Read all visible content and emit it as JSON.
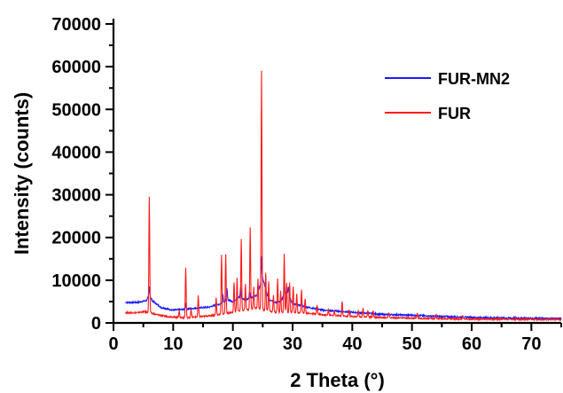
{
  "chart_data": {
    "type": "line",
    "xlabel": "2 Theta (°)",
    "ylabel": "Intensity (counts)",
    "xlim": [
      0,
      75
    ],
    "ylim": [
      0,
      70000
    ],
    "x_ticks": [
      0,
      10,
      20,
      30,
      40,
      50,
      60,
      70
    ],
    "y_ticks": [
      0,
      10000,
      20000,
      30000,
      40000,
      50000,
      60000,
      70000
    ],
    "grid": false,
    "legend_position": "top-right",
    "series": [
      {
        "name": "FUR-MN2",
        "color": "#1a1aff",
        "baseline": [
          [
            2,
            4800
          ],
          [
            4,
            4800
          ],
          [
            5.5,
            5200
          ],
          [
            6,
            6500
          ],
          [
            6.5,
            5200
          ],
          [
            8,
            3600
          ],
          [
            10,
            3000
          ],
          [
            12,
            3200
          ],
          [
            14,
            3500
          ],
          [
            16,
            3700
          ],
          [
            18,
            4500
          ],
          [
            19,
            5500
          ],
          [
            20,
            5000
          ],
          [
            21,
            6000
          ],
          [
            22,
            5500
          ],
          [
            23,
            5800
          ],
          [
            24,
            6500
          ],
          [
            25,
            10500
          ],
          [
            26,
            5500
          ],
          [
            27,
            4800
          ],
          [
            28,
            5000
          ],
          [
            29,
            7500
          ],
          [
            30,
            4500
          ],
          [
            32,
            3800
          ],
          [
            35,
            3000
          ],
          [
            40,
            2500
          ],
          [
            45,
            2000
          ],
          [
            50,
            1800
          ],
          [
            55,
            1500
          ],
          [
            60,
            1300
          ],
          [
            65,
            1200
          ],
          [
            70,
            1100
          ],
          [
            75,
            1000
          ]
        ],
        "peaks": [
          [
            6.0,
            2000
          ],
          [
            12.1,
            1500
          ],
          [
            18.3,
            2000
          ],
          [
            19.0,
            2500
          ],
          [
            21.3,
            2500
          ],
          [
            22.8,
            1500
          ],
          [
            24.8,
            6000
          ],
          [
            28.6,
            3000
          ],
          [
            29.3,
            2000
          ],
          [
            31.5,
            1000
          ]
        ]
      },
      {
        "name": "FUR",
        "color": "#ff1a1a",
        "baseline": [
          [
            2,
            2400
          ],
          [
            4,
            2400
          ],
          [
            5,
            2600
          ],
          [
            6,
            2500
          ],
          [
            7,
            2000
          ],
          [
            9,
            1500
          ],
          [
            12,
            1200
          ],
          [
            15,
            1500
          ],
          [
            18,
            2000
          ],
          [
            20,
            2500
          ],
          [
            22,
            3000
          ],
          [
            24,
            3500
          ],
          [
            25,
            3000
          ],
          [
            27,
            2500
          ],
          [
            30,
            2500
          ],
          [
            33,
            2200
          ],
          [
            36,
            1800
          ],
          [
            40,
            1500
          ],
          [
            45,
            1300
          ],
          [
            50,
            1100
          ],
          [
            55,
            1000
          ],
          [
            60,
            900
          ],
          [
            65,
            900
          ],
          [
            70,
            800
          ],
          [
            75,
            800
          ]
        ],
        "peaks": [
          [
            6.0,
            27000
          ],
          [
            11.0,
            1500
          ],
          [
            12.1,
            11800
          ],
          [
            13.0,
            2000
          ],
          [
            14.2,
            5000
          ],
          [
            17.2,
            4000
          ],
          [
            18.1,
            13800
          ],
          [
            18.8,
            14000
          ],
          [
            20.2,
            7000
          ],
          [
            20.7,
            8000
          ],
          [
            21.4,
            16900
          ],
          [
            22.1,
            6000
          ],
          [
            22.9,
            19300
          ],
          [
            23.5,
            5000
          ],
          [
            24.2,
            7000
          ],
          [
            24.8,
            56000
          ],
          [
            25.5,
            9000
          ],
          [
            26.0,
            7000
          ],
          [
            26.8,
            4000
          ],
          [
            27.5,
            8000
          ],
          [
            28.0,
            5000
          ],
          [
            28.6,
            13700
          ],
          [
            29.0,
            7000
          ],
          [
            29.5,
            7000
          ],
          [
            30.1,
            6000
          ],
          [
            30.7,
            4500
          ],
          [
            31.5,
            5500
          ],
          [
            32.1,
            3500
          ],
          [
            34.1,
            2000
          ],
          [
            36.0,
            1500
          ],
          [
            37.0,
            1000
          ],
          [
            38.3,
            3500
          ],
          [
            39.5,
            1500
          ],
          [
            41.0,
            1500
          ],
          [
            41.8,
            2000
          ],
          [
            42.6,
            1500
          ],
          [
            43.5,
            1500
          ],
          [
            46.1,
            1000
          ],
          [
            50.9,
            1200
          ],
          [
            54.0,
            1000
          ],
          [
            58.5,
            800
          ]
        ]
      }
    ]
  }
}
